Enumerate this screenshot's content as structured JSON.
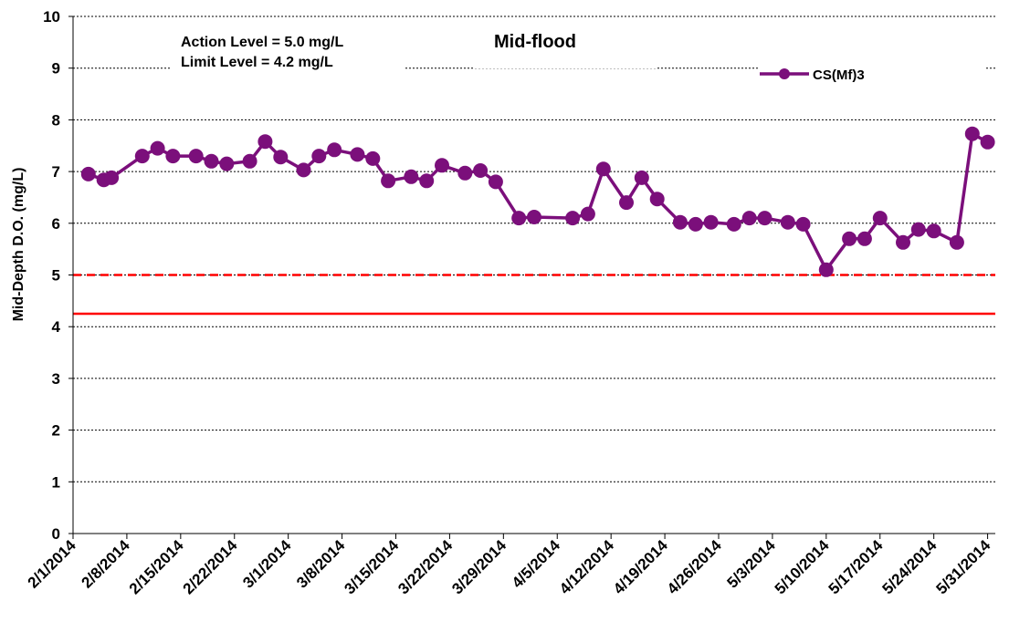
{
  "chart_data": {
    "type": "line",
    "title": "Mid-flood",
    "ylabel": "Mid-Depth D.O. (mg/L)",
    "xlabel": "",
    "ylim": [
      0,
      10
    ],
    "yticks": [
      "0",
      "1",
      "2",
      "3",
      "4",
      "5",
      "6",
      "7",
      "8",
      "9",
      "10"
    ],
    "xlim": [
      "2014-02-01",
      "2014-06-01"
    ],
    "xtick_labels": [
      "2/1/2014",
      "2/8/2014",
      "2/15/2014",
      "2/22/2014",
      "3/1/2014",
      "3/8/2014",
      "3/15/2014",
      "3/22/2014",
      "3/29/2014",
      "4/5/2014",
      "4/12/2014",
      "4/19/2014",
      "4/26/2014",
      "5/3/2014",
      "5/10/2014",
      "5/17/2014",
      "5/24/2014",
      "5/31/2014"
    ],
    "xtick_dates": [
      "2014-02-01",
      "2014-02-08",
      "2014-02-15",
      "2014-02-22",
      "2014-03-01",
      "2014-03-08",
      "2014-03-15",
      "2014-03-22",
      "2014-03-29",
      "2014-04-05",
      "2014-04-12",
      "2014-04-19",
      "2014-04-26",
      "2014-05-03",
      "2014-05-10",
      "2014-05-17",
      "2014-05-24",
      "2014-05-31"
    ],
    "grid": true,
    "legend_position": "top-right",
    "annotations": [
      "Action Level = 5.0 mg/L",
      "Limit Level = 4.2 mg/L"
    ],
    "reference_lines": [
      {
        "value": 5.0,
        "style": "dashed",
        "color": "#ff0000"
      },
      {
        "value": 4.25,
        "style": "solid",
        "color": "#ff0000"
      }
    ],
    "series": [
      {
        "name": "CS(Mf)3",
        "color": "#7b0f7b",
        "points": [
          [
            "2014-02-03",
            6.95
          ],
          [
            "2014-02-05",
            6.84
          ],
          [
            "2014-02-06",
            6.88
          ],
          [
            "2014-02-10",
            7.3
          ],
          [
            "2014-02-12",
            7.45
          ],
          [
            "2014-02-14",
            7.3
          ],
          [
            "2014-02-17",
            7.3
          ],
          [
            "2014-02-19",
            7.2
          ],
          [
            "2014-02-21",
            7.15
          ],
          [
            "2014-02-24",
            7.2
          ],
          [
            "2014-02-26",
            7.58
          ],
          [
            "2014-02-28",
            7.28
          ],
          [
            "2014-03-03",
            7.03
          ],
          [
            "2014-03-05",
            7.3
          ],
          [
            "2014-03-07",
            7.42
          ],
          [
            "2014-03-10",
            7.33
          ],
          [
            "2014-03-12",
            7.25
          ],
          [
            "2014-03-14",
            6.82
          ],
          [
            "2014-03-17",
            6.9
          ],
          [
            "2014-03-19",
            6.82
          ],
          [
            "2014-03-21",
            7.12
          ],
          [
            "2014-03-24",
            6.97
          ],
          [
            "2014-03-26",
            7.02
          ],
          [
            "2014-03-28",
            6.8
          ],
          [
            "2014-03-31",
            6.1
          ],
          [
            "2014-04-02",
            6.12
          ],
          [
            "2014-04-07",
            6.1
          ],
          [
            "2014-04-09",
            6.18
          ],
          [
            "2014-04-11",
            7.05
          ],
          [
            "2014-04-14",
            6.4
          ],
          [
            "2014-04-16",
            6.88
          ],
          [
            "2014-04-18",
            6.47
          ],
          [
            "2014-04-21",
            6.02
          ],
          [
            "2014-04-23",
            5.98
          ],
          [
            "2014-04-25",
            6.02
          ],
          [
            "2014-04-28",
            5.98
          ],
          [
            "2014-04-30",
            6.1
          ],
          [
            "2014-05-02",
            6.1
          ],
          [
            "2014-05-05",
            6.02
          ],
          [
            "2014-05-07",
            5.98
          ],
          [
            "2014-05-10",
            5.1
          ],
          [
            "2014-05-13",
            5.7
          ],
          [
            "2014-05-15",
            5.7
          ],
          [
            "2014-05-17",
            6.1
          ],
          [
            "2014-05-20",
            5.63
          ],
          [
            "2014-05-22",
            5.88
          ],
          [
            "2014-05-24",
            5.85
          ],
          [
            "2014-05-27",
            5.63
          ],
          [
            "2014-05-29",
            7.73
          ],
          [
            "2014-05-31",
            7.57
          ]
        ]
      }
    ]
  }
}
